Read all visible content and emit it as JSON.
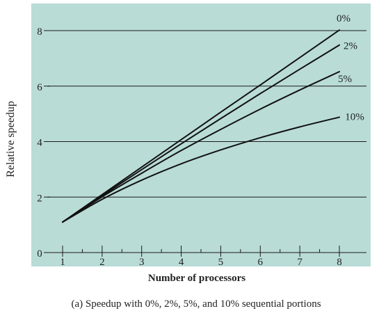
{
  "chart_data": {
    "type": "line",
    "title": "",
    "caption": "(a) Speedup with 0%, 2%, 5%, and 10% sequential portions",
    "xlabel": "Number of processors",
    "ylabel": "Relative speedup",
    "xlim": [
      0.8,
      8.6
    ],
    "ylim": [
      0,
      8.6
    ],
    "x_ticks": [
      "1",
      "2",
      "3",
      "4",
      "5",
      "6",
      "7",
      "8"
    ],
    "y_ticks": [
      "0",
      "2",
      "4",
      "6",
      "8"
    ],
    "grid": "horizontal",
    "background": "#b9dcd7",
    "x": [
      1,
      2,
      3,
      4,
      5,
      6,
      7,
      8
    ],
    "series": [
      {
        "name": "0%",
        "values": [
          1.1,
          2.09,
          3.08,
          4.07,
          5.06,
          6.04,
          7.03,
          8.02
        ]
      },
      {
        "name": "2%",
        "values": [
          1.1,
          2.05,
          2.99,
          3.92,
          4.83,
          5.73,
          6.61,
          7.48
        ]
      },
      {
        "name": "5%",
        "values": [
          1.1,
          2.01,
          2.86,
          3.68,
          4.44,
          5.17,
          5.86,
          6.52
        ]
      },
      {
        "name": "10%",
        "values": [
          1.1,
          1.92,
          2.61,
          3.2,
          3.7,
          4.14,
          4.53,
          4.88
        ]
      }
    ]
  }
}
